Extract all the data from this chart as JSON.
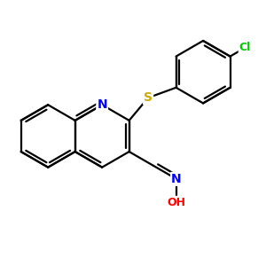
{
  "bg_color": "#ffffff",
  "atom_colors": {
    "N": "#0000ff",
    "S": "#ccaa00",
    "O": "#ff0000",
    "Cl": "#00cc00",
    "C": "#000000"
  },
  "bond_color": "#000000",
  "bond_width": 1.6,
  "figsize": [
    3.0,
    3.0
  ],
  "dpi": 100
}
